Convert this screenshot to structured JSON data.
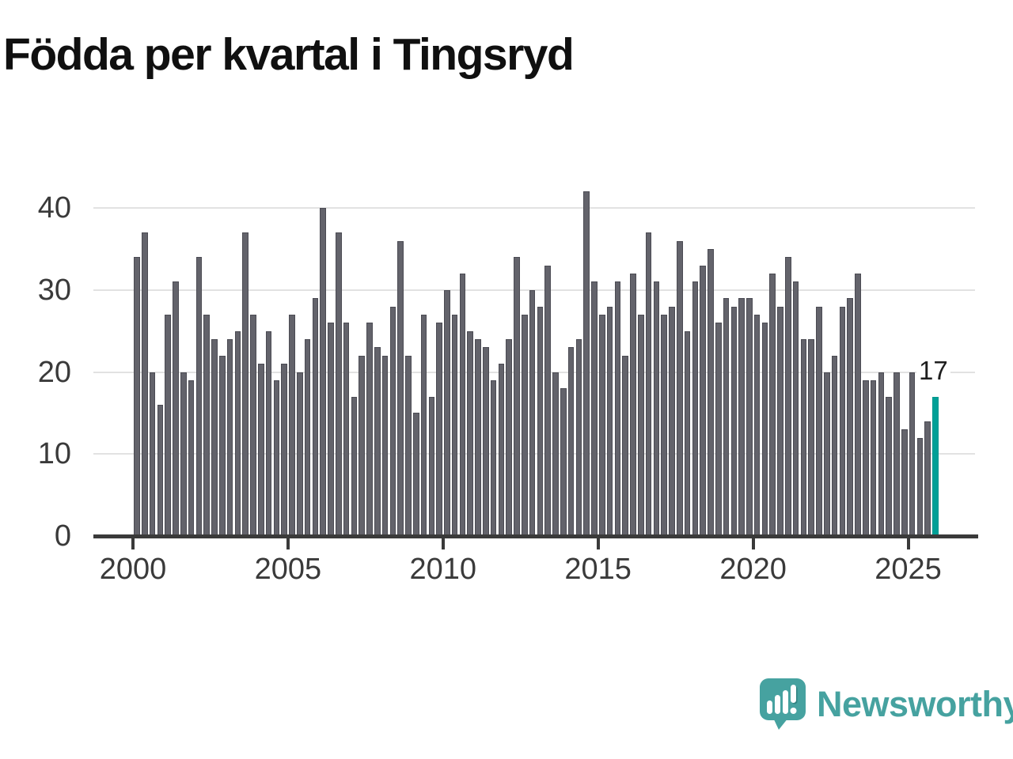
{
  "title": "Födda per kvartal i Tingsryd",
  "colors": {
    "bar_gray": "#63636b",
    "bar_highlight_teal": "#00a097",
    "gridline": "#e2e2e2",
    "axis_text": "#3a3a3a",
    "title_text": "#101010",
    "logo_teal": "#46a2a0"
  },
  "chart_data": {
    "type": "bar",
    "title": "Födda per kvartal i Tingsryd",
    "start_quarter": "2000-Q1",
    "end_quarter": "2025-Q4",
    "values": [
      34,
      37,
      20,
      16,
      27,
      31,
      20,
      19,
      34,
      27,
      24,
      22,
      24,
      25,
      37,
      27,
      21,
      25,
      19,
      21,
      27,
      20,
      24,
      29,
      40,
      26,
      37,
      26,
      17,
      22,
      26,
      23,
      22,
      28,
      36,
      22,
      15,
      27,
      17,
      26,
      30,
      27,
      32,
      25,
      24,
      23,
      19,
      21,
      24,
      34,
      27,
      30,
      28,
      33,
      20,
      18,
      23,
      24,
      42,
      31,
      27,
      28,
      31,
      22,
      32,
      27,
      37,
      31,
      27,
      28,
      36,
      25,
      31,
      33,
      35,
      26,
      29,
      28,
      29,
      29,
      27,
      26,
      32,
      28,
      34,
      31,
      24,
      24,
      28,
      20,
      22,
      28,
      29,
      32,
      19,
      19,
      20,
      17,
      20,
      13,
      20,
      12,
      14,
      17
    ],
    "highlight_index": 103,
    "highlight_value_label": "17",
    "ylim": [
      0,
      40
    ],
    "yticks": [
      0,
      10,
      20,
      30,
      40
    ],
    "xticks_years": [
      2000,
      2005,
      2010,
      2015,
      2020,
      2025
    ],
    "grid": true,
    "legend": false
  },
  "annotation": {
    "value_label": "17"
  },
  "footer": {
    "brand": "Newsworthy"
  }
}
